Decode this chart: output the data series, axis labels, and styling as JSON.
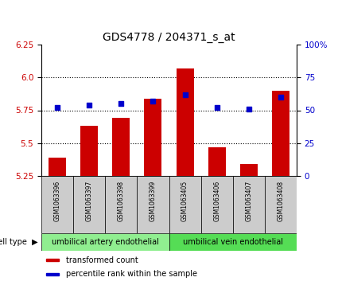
{
  "title": "GDS4778 / 204371_s_at",
  "samples": [
    "GSM1063396",
    "GSM1063397",
    "GSM1063398",
    "GSM1063399",
    "GSM1063405",
    "GSM1063406",
    "GSM1063407",
    "GSM1063408"
  ],
  "transformed_count": [
    5.39,
    5.63,
    5.69,
    5.84,
    6.07,
    5.47,
    5.34,
    5.9
  ],
  "percentile_rank": [
    52,
    54,
    55,
    57,
    62,
    52,
    51,
    60
  ],
  "ylim_left": [
    5.25,
    6.25
  ],
  "ylim_right": [
    0,
    100
  ],
  "yticks_left": [
    5.25,
    5.5,
    5.75,
    6.0,
    6.25
  ],
  "yticks_right": [
    0,
    25,
    50,
    75,
    100
  ],
  "bar_color": "#cc0000",
  "dot_color": "#0000cc",
  "bar_base": 5.25,
  "cell_type_groups": [
    {
      "label": "umbilical artery endothelial",
      "start": 0,
      "end": 3,
      "color": "#90ee90"
    },
    {
      "label": "umbilical vein endothelial",
      "start": 4,
      "end": 7,
      "color": "#55dd55"
    }
  ],
  "legend_items": [
    {
      "label": "transformed count",
      "color": "#cc0000"
    },
    {
      "label": "percentile rank within the sample",
      "color": "#0000cc"
    }
  ],
  "xlabel_area_color": "#cccccc",
  "grid_style": "dotted",
  "grid_color": "black",
  "grid_linewidth": 0.8,
  "title_fontsize": 10,
  "tick_fontsize": 7.5,
  "sample_fontsize": 5.5,
  "group_fontsize": 7,
  "legend_fontsize": 7,
  "cell_type_fontsize": 7
}
